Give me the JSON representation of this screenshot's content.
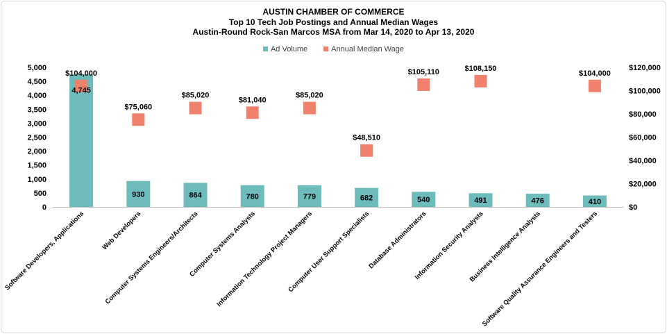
{
  "chart_data": {
    "type": "bar+scatter",
    "title_lines": [
      "AUSTIN CHAMBER  OF COMMERCE",
      "Top 10 Tech Job Postings and Annual Median Wages",
      "Austin-Round  Rock-San Marcos MSA from Mar 14, 2020 to Apr 13, 2020"
    ],
    "categories": [
      "Software Developers, Applications",
      "Web Developers",
      "Computer Systems Engineers/Architects",
      "Computer Systems Analysts",
      "Information Technology Project Managers",
      "Computer User Support Specialists",
      "Database Administrators",
      "Information Security Analysts",
      "Business Intelligence Analysts",
      "Software Quality Assurance Engineers and Testers"
    ],
    "series": [
      {
        "name": "Ad Volume",
        "type": "bar",
        "axis": "left",
        "color": "#6dbbbb",
        "values": [
          4745,
          930,
          864,
          780,
          779,
          682,
          540,
          491,
          476,
          410
        ],
        "labels": [
          "4,745",
          "930",
          "864",
          "780",
          "779",
          "682",
          "540",
          "491",
          "476",
          "410"
        ]
      },
      {
        "name": "Annual Median Wage",
        "type": "scatter",
        "axis": "right",
        "color": "#f0826d",
        "values": [
          104000,
          75060,
          85020,
          81040,
          85020,
          48510,
          105110,
          108150,
          null,
          104000
        ],
        "labels": [
          "$104,000",
          "$75,060",
          "$85,020",
          "$81,040",
          "$85,020",
          "$48,510",
          "$105,110",
          "$108,150",
          "",
          "$104,000"
        ]
      }
    ],
    "y_left": {
      "ylim": [
        0,
        5000
      ],
      "ticks": [
        "0",
        "500",
        "1,000",
        "1,500",
        "2,000",
        "2,500",
        "3,000",
        "3,500",
        "4,000",
        "4,500",
        "5,000"
      ]
    },
    "y_right": {
      "ylim": [
        0,
        120000
      ],
      "ticks": [
        "$0",
        "$20,000",
        "$40,000",
        "$60,000",
        "$80,000",
        "$100,000",
        "$120,000"
      ]
    },
    "legend_position": "top",
    "grid": false
  }
}
